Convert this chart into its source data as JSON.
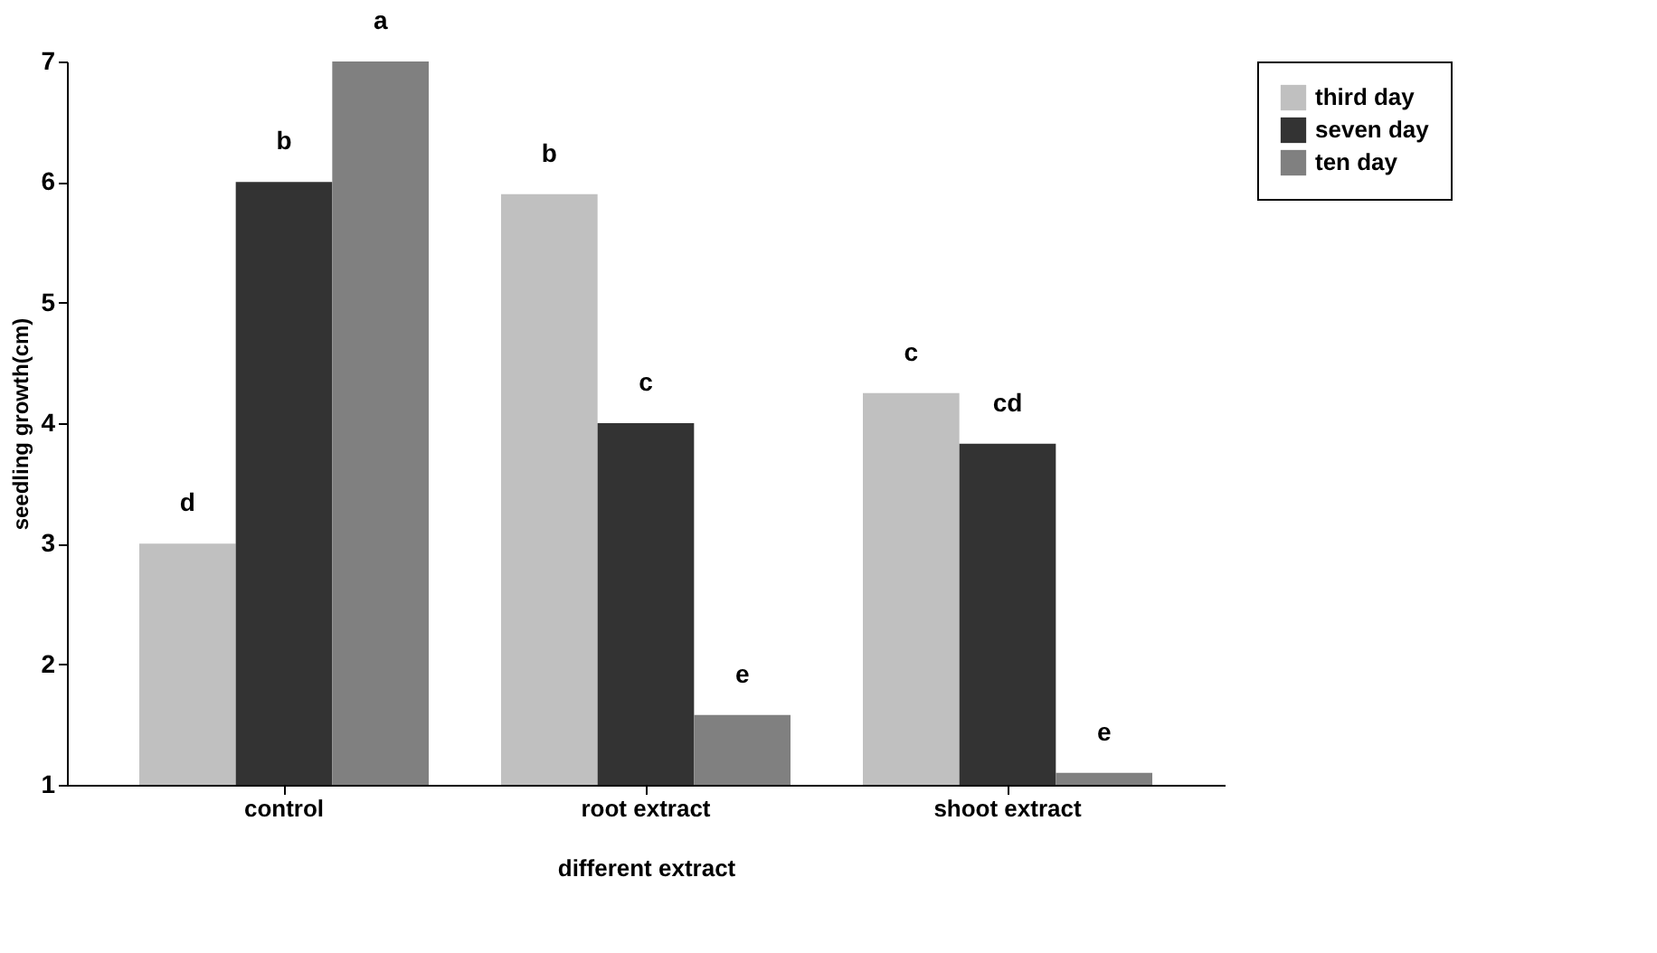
{
  "chart_data": {
    "type": "bar",
    "xlabel": "different extract",
    "ylabel": "seedling growth(cm)",
    "categories": [
      "control",
      "root extract",
      "shoot extract"
    ],
    "series": [
      {
        "name": "third day",
        "color": "#c0c0c0",
        "values": [
          3.0,
          5.9,
          4.25
        ],
        "value_labels": [
          "d",
          "b",
          "c"
        ]
      },
      {
        "name": "seven day",
        "color": "#333333",
        "values": [
          6.0,
          4.0,
          3.83
        ],
        "value_labels": [
          "b",
          "c",
          "cd"
        ]
      },
      {
        "name": "ten day",
        "color": "#808080",
        "values": [
          7.0,
          1.58,
          1.1
        ],
        "value_labels": [
          "a",
          "e",
          "e"
        ]
      }
    ],
    "ylim": [
      1,
      7
    ],
    "yticks": [
      1,
      2,
      3,
      4,
      5,
      6,
      7
    ],
    "grid": false,
    "legend": "right"
  }
}
